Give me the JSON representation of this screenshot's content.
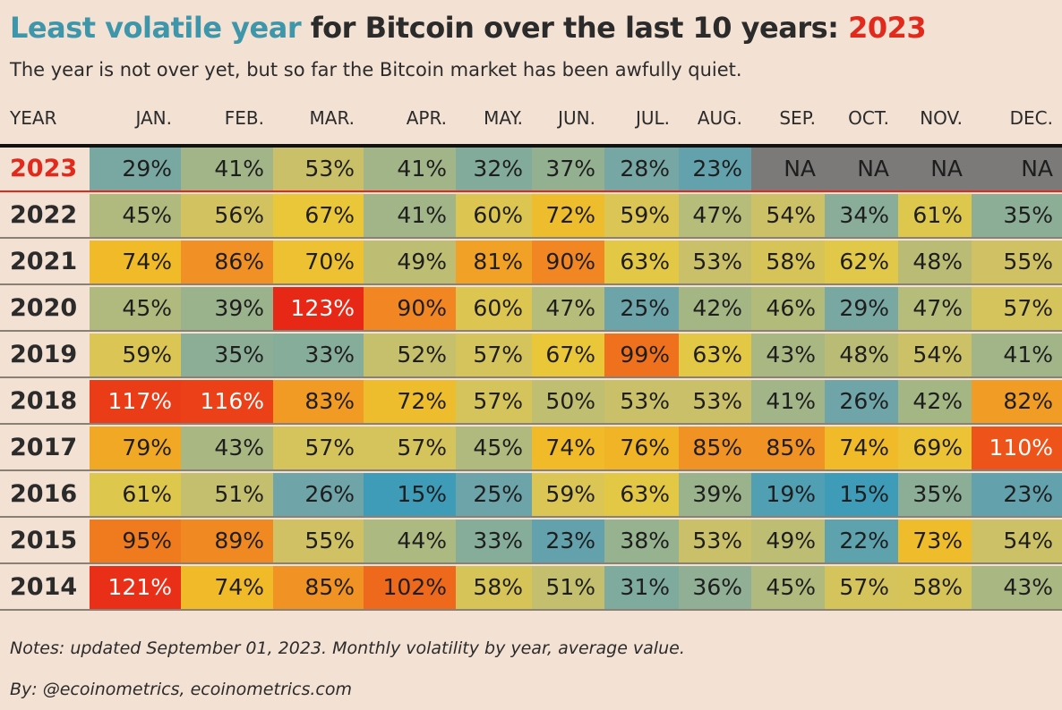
{
  "title": {
    "part1": "Least volatile year",
    "part2": " for Bitcoin over the last 10 years: ",
    "part3": "2023"
  },
  "subtitle": "The year is not over yet, but so far the Bitcoin market has been awfully quiet.",
  "notes": "Notes: updated September 01, 2023. Monthly volatility by year, average value.",
  "byline": "By: @ecoinometrics, ecoinometrics.com",
  "colors": {
    "background": "#f3e1d4",
    "highlight_blue": "#3e96ab",
    "highlight_red": "#e12a1c",
    "na": "#7b7a79"
  },
  "chart_data": {
    "type": "heatmap",
    "title": "Least volatile year for Bitcoin over the last 10 years: 2023",
    "subtitle": "The year is not over yet, but so far the Bitcoin market has been awfully quiet.",
    "row_header": "YEAR",
    "columns": [
      "JAN.",
      "FEB.",
      "MAR.",
      "APR.",
      "MAY.",
      "JUN.",
      "JUL.",
      "AUG.",
      "SEP.",
      "OCT.",
      "NOV.",
      "DEC."
    ],
    "rows": [
      {
        "year": "2023",
        "values": [
          29,
          41,
          53,
          41,
          32,
          37,
          28,
          23,
          null,
          null,
          null,
          null
        ]
      },
      {
        "year": "2022",
        "values": [
          45,
          56,
          67,
          41,
          60,
          72,
          59,
          47,
          54,
          34,
          61,
          35
        ]
      },
      {
        "year": "2021",
        "values": [
          74,
          86,
          70,
          49,
          81,
          90,
          63,
          53,
          58,
          62,
          48,
          55
        ]
      },
      {
        "year": "2020",
        "values": [
          45,
          39,
          123,
          90,
          60,
          47,
          25,
          42,
          46,
          29,
          47,
          57
        ]
      },
      {
        "year": "2019",
        "values": [
          59,
          35,
          33,
          52,
          57,
          67,
          99,
          63,
          43,
          48,
          54,
          41
        ]
      },
      {
        "year": "2018",
        "values": [
          117,
          116,
          83,
          72,
          57,
          50,
          53,
          53,
          41,
          26,
          42,
          82
        ]
      },
      {
        "year": "2017",
        "values": [
          79,
          43,
          57,
          57,
          45,
          74,
          76,
          85,
          85,
          74,
          69,
          110
        ]
      },
      {
        "year": "2016",
        "values": [
          61,
          51,
          26,
          15,
          25,
          59,
          63,
          39,
          19,
          15,
          35,
          23
        ]
      },
      {
        "year": "2015",
        "values": [
          95,
          89,
          55,
          44,
          33,
          23,
          38,
          53,
          49,
          22,
          73,
          54
        ]
      },
      {
        "year": "2014",
        "values": [
          121,
          74,
          85,
          102,
          58,
          51,
          31,
          36,
          45,
          57,
          58,
          43
        ]
      }
    ],
    "unit": "%",
    "missing_label": "NA"
  }
}
